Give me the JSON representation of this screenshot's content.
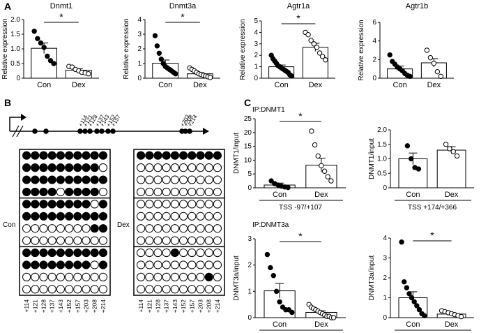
{
  "panels": {
    "A": "A",
    "B": "B",
    "C": "C"
  },
  "chart_data": [
    {
      "id": "dnmt1",
      "type": "bar",
      "title": "Dnmt1",
      "ylabel": "Relative expression",
      "categories": [
        "Con",
        "Dex"
      ],
      "values": [
        1.02,
        0.27
      ],
      "errors": [
        0.18,
        0.05
      ],
      "ylim": [
        0,
        2.0
      ],
      "yticks": [
        "0",
        "0.5",
        "1.0",
        "1.5",
        "2.0"
      ],
      "sig": "*",
      "points": [
        [
          1.6,
          1.35,
          1.2,
          1.05,
          0.75,
          0.6,
          0.5
        ],
        [
          0.4,
          0.38,
          0.3,
          0.25,
          0.2,
          0.18,
          0.15
        ]
      ]
    },
    {
      "id": "dnmt3a",
      "type": "bar",
      "title": "Dnmt3a",
      "ylabel": "Relative expression",
      "categories": [
        "Con",
        "Dex"
      ],
      "values": [
        1.02,
        0.3
      ],
      "errors": [
        0.22,
        0.08
      ],
      "ylim": [
        0,
        4
      ],
      "yticks": [
        "0",
        "1",
        "2",
        "3",
        "4"
      ],
      "sig": "*",
      "points": [
        [
          2.9,
          2.2,
          1.7,
          1.3,
          1.0,
          0.8,
          0.7,
          0.6,
          0.5,
          0.4,
          0.3
        ],
        [
          0.7,
          0.6,
          0.5,
          0.4,
          0.3,
          0.25,
          0.2,
          0.15,
          0.1,
          0.05
        ]
      ]
    },
    {
      "id": "agtr1a",
      "type": "bar",
      "title": "Agtr1a",
      "ylabel": "Relative expression",
      "categories": [
        "Con",
        "Dex"
      ],
      "values": [
        1.0,
        2.7
      ],
      "errors": [
        0.15,
        0.35
      ],
      "ylim": [
        0,
        5
      ],
      "yticks": [
        "0",
        "1",
        "2",
        "3",
        "4",
        "5"
      ],
      "sig": "*",
      "points": [
        [
          2.0,
          1.7,
          1.5,
          1.3,
          1.1,
          1.0,
          0.9,
          0.8,
          0.7,
          0.6,
          0.5,
          0.3,
          0.2
        ],
        [
          4.0,
          3.8,
          3.3,
          3.0,
          2.7,
          2.2,
          1.9,
          1.6
        ]
      ]
    },
    {
      "id": "agtr1b",
      "type": "bar",
      "title": "Agtr1b",
      "ylabel": "Relative expression",
      "categories": [
        "Con",
        "Dex"
      ],
      "values": [
        1.0,
        1.65
      ],
      "errors": [
        0.3,
        0.45
      ],
      "ylim": [
        0,
        6
      ],
      "yticks": [
        "0",
        "2",
        "4",
        "6"
      ],
      "sig": "",
      "points": [
        [
          2.5,
          1.8,
          1.5,
          1.2,
          1.0,
          0.8,
          0.5,
          0.3,
          0.2
        ],
        [
          3.0,
          2.2,
          1.6,
          0.7,
          0.2
        ]
      ]
    },
    {
      "id": "c_dnmt1_a",
      "type": "bar",
      "section": "IP:DNMT1",
      "ylabel": "DNMT1/input",
      "xlabel": "TSS -97/+107",
      "categories": [
        "Con",
        "Dex"
      ],
      "values": [
        1.0,
        8.2
      ],
      "errors": [
        0.7,
        2.5
      ],
      "ylim": [
        0,
        25
      ],
      "yticks": [
        "0",
        "5",
        "10",
        "15",
        "20",
        "25"
      ],
      "sig": "*",
      "points": [
        [
          2.5,
          1.5,
          1.0,
          0.6,
          0.3,
          0.1
        ],
        [
          20.5,
          15.5,
          11.5,
          8.0,
          6.0,
          4.0,
          2.5
        ]
      ]
    },
    {
      "id": "c_dnmt1_b",
      "type": "bar",
      "ylabel": "DNMT1/input",
      "xlabel": "TSS +174/+366",
      "categories": [
        "Con",
        "Dex"
      ],
      "values": [
        1.0,
        1.3
      ],
      "errors": [
        0.2,
        0.12
      ],
      "ylim": [
        0,
        2.0
      ],
      "yticks": [
        "0",
        "0.5",
        "1.0",
        "1.5",
        "2.0"
      ],
      "sig": "",
      "points": [
        [
          1.45,
          1.0,
          0.7,
          0.65
        ],
        [
          1.5,
          1.35,
          1.25,
          1.1
        ]
      ]
    },
    {
      "id": "c_dnmt3a_a",
      "type": "bar",
      "section": "IP:DNMT3a",
      "ylabel": "DNMT3a/input",
      "xlabel": "TSS -97/+107",
      "categories": [
        "Con",
        "Dex"
      ],
      "values": [
        1.02,
        0.2
      ],
      "errors": [
        0.28,
        0.06
      ],
      "ylim": [
        0,
        3
      ],
      "yticks": [
        "0",
        "1",
        "2",
        "3"
      ],
      "sig": "*",
      "points": [
        [
          2.4,
          1.9,
          1.6,
          1.0,
          0.6,
          0.4,
          0.3,
          0.3,
          0.2
        ],
        [
          0.5,
          0.4,
          0.35,
          0.3,
          0.25,
          0.2,
          0.15,
          0.1,
          0.05,
          0.05,
          0.0,
          0.0
        ]
      ]
    },
    {
      "id": "c_dnmt3a_b",
      "type": "bar",
      "ylabel": "DNMT3a/input",
      "xlabel": "TSS +174/+366",
      "categories": [
        "Con",
        "Dex"
      ],
      "values": [
        1.0,
        0.18
      ],
      "errors": [
        0.3,
        0.05
      ],
      "ylim": [
        0,
        4
      ],
      "yticks": [
        "0",
        "1",
        "2",
        "3",
        "4"
      ],
      "sig": "*",
      "points": [
        [
          3.8,
          1.8,
          1.5,
          1.2,
          1.0,
          0.8,
          0.6,
          0.4,
          0.2,
          0.1
        ],
        [
          0.35,
          0.3,
          0.25,
          0.2,
          0.15,
          0.1,
          0.05
        ]
      ]
    }
  ],
  "methylation": {
    "cpg_left": [
      "+114",
      "+121",
      "+128",
      "+137",
      "+143",
      "+152",
      "+157",
      "+203",
      "+208",
      "+214"
    ],
    "cpg_bottom": [
      "+114",
      "+121",
      "+128",
      "+137",
      "+143",
      "+152",
      "+157",
      "+203",
      "+208",
      "+214"
    ],
    "con_label": "Con",
    "dex_label": "Dex",
    "con": [
      "1111111111",
      "1111111110",
      "1111111111",
      "1111011110",
      "1111111101",
      "1111111111",
      "0000000011",
      "0000000000",
      "1111111111",
      "1111111101",
      "0000000000",
      "0000000000"
    ],
    "dex": [
      "1111111111",
      "0000000000",
      "0000000000",
      "0000000000",
      "0000000000",
      "0000000000",
      "0000000000",
      "0000000000",
      "0000100000",
      "0000000000",
      "0000000010",
      "0000000000"
    ]
  }
}
